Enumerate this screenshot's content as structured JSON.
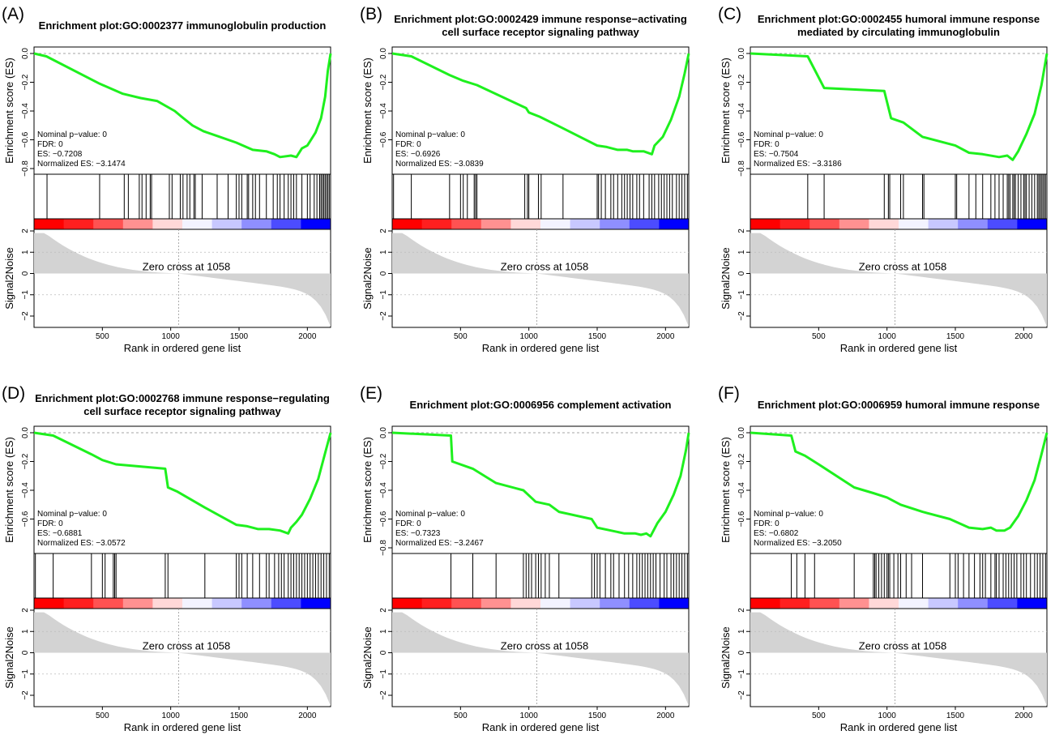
{
  "figure": {
    "y_label_es": "Enrichment score (ES)",
    "y_label_metric": "Signal2Noise",
    "x_label": "Rank in ordered gene list",
    "zero_cross_label": "Zero cross at 1058",
    "stat_labels": {
      "p": "Nominal p−value: 0",
      "fdr": "FDR: 0"
    },
    "colors": {
      "es_curve": "#1ef01e",
      "hits": "#000000",
      "metric_fill": "#d3d3d3",
      "positive": "#ff0000",
      "negative": "#0000ff"
    }
  },
  "chart_data": [
    {
      "panel": "(A)",
      "type": "line",
      "title_lines": [
        "Enrichment plot:GO:0002377 immunoglobulin production"
      ],
      "es_text": "ES: −0.7208",
      "nes_text": "Normalized ES: −3.1474",
      "nominal_p": 0,
      "fdr": 0,
      "es": -0.7208,
      "nes": -3.1474,
      "n_genes": 2170,
      "zero_cross": 1058,
      "es_ylim": [
        -0.8,
        0.0
      ],
      "es_yticks": [
        "−0.8",
        "−0.6",
        "−0.4",
        "−0.2",
        "0.0"
      ],
      "metric_ylim": [
        -2,
        2
      ],
      "metric_yticks": [
        "−2",
        "−1",
        "0",
        "1",
        "2"
      ],
      "xticks": [
        500,
        1000,
        1500,
        2000
      ],
      "es_curve": {
        "x": [
          0,
          90,
          480,
          650,
          780,
          900,
          1030,
          1080,
          1160,
          1240,
          1330,
          1480,
          1600,
          1700,
          1760,
          1800,
          1880,
          1920,
          1960,
          2000,
          2060,
          2100,
          2130,
          2150,
          2170
        ],
        "y": [
          0.0,
          -0.02,
          -0.21,
          -0.28,
          -0.31,
          -0.33,
          -0.4,
          -0.44,
          -0.5,
          -0.54,
          -0.57,
          -0.62,
          -0.67,
          -0.68,
          -0.7,
          -0.72,
          -0.71,
          -0.72,
          -0.66,
          -0.64,
          -0.55,
          -0.45,
          -0.3,
          -0.12,
          0.0
        ]
      },
      "hits": [
        95,
        480,
        660,
        690,
        770,
        790,
        820,
        850,
        860,
        990,
        1010,
        1070,
        1090,
        1120,
        1140,
        1170,
        1180,
        1230,
        1340,
        1420,
        1480,
        1500,
        1520,
        1560,
        1570,
        1600,
        1620,
        1650,
        1700,
        1750,
        1780,
        1800,
        1830,
        1860,
        1880,
        1900,
        1920,
        1960,
        2000,
        2020,
        2050,
        2070,
        2090,
        2100,
        2110,
        2120,
        2130,
        2140,
        2150,
        2160
      ]
    },
    {
      "panel": "(B)",
      "type": "line",
      "title_lines": [
        "Enrichment plot:GO:0002429 immune response−activating",
        "cell surface receptor signaling pathway"
      ],
      "es_text": "ES: −0.6926",
      "nes_text": "Normalized ES: −3.0839",
      "nominal_p": 0,
      "fdr": 0,
      "es": -0.6926,
      "nes": -3.0839,
      "n_genes": 2170,
      "zero_cross": 1058,
      "es_ylim": [
        -0.8,
        0.0
      ],
      "es_yticks": [
        "−0.6",
        "−0.4",
        "−0.2",
        "0.0"
      ],
      "metric_ylim": [
        -2,
        2
      ],
      "metric_yticks": [
        "−2",
        "−1",
        "0",
        "1",
        "2"
      ],
      "xticks": [
        500,
        1000,
        1500,
        2000
      ],
      "es_curve": {
        "x": [
          0,
          140,
          420,
          520,
          620,
          980,
          1000,
          1080,
          1250,
          1500,
          1570,
          1650,
          1720,
          1760,
          1840,
          1900,
          1920,
          1980,
          2040,
          2100,
          2140,
          2170
        ],
        "y": [
          0.0,
          -0.02,
          -0.15,
          -0.19,
          -0.22,
          -0.38,
          -0.41,
          -0.44,
          -0.52,
          -0.64,
          -0.65,
          -0.67,
          -0.67,
          -0.68,
          -0.68,
          -0.7,
          -0.64,
          -0.58,
          -0.46,
          -0.3,
          -0.14,
          0.0
        ]
      },
      "hits": [
        10,
        140,
        420,
        500,
        520,
        550,
        600,
        610,
        620,
        970,
        990,
        1000,
        1070,
        1090,
        1250,
        1500,
        1510,
        1530,
        1560,
        1600,
        1620,
        1650,
        1680,
        1700,
        1720,
        1740,
        1760,
        1790,
        1810,
        1840,
        1880,
        1900,
        1920,
        1950,
        1970,
        1990,
        2010,
        2030,
        2050,
        2080,
        2100,
        2120,
        2140,
        2160
      ]
    },
    {
      "panel": "(C)",
      "type": "line",
      "title_lines": [
        "Enrichment plot:GO:0002455 humoral immune response",
        "mediated by circulating immunoglobulin"
      ],
      "es_text": "ES: −0.7504",
      "nes_text": "Normalized ES: −3.3186",
      "nominal_p": 0,
      "fdr": 0,
      "es": -0.7504,
      "nes": -3.3186,
      "n_genes": 2170,
      "zero_cross": 1058,
      "es_ylim": [
        -0.8,
        0.0
      ],
      "es_yticks": [
        "−0.8",
        "−0.6",
        "−0.4",
        "−0.2",
        "0.0"
      ],
      "metric_ylim": [
        -2,
        2
      ],
      "metric_yticks": [
        "−2",
        "−1",
        "0",
        "1",
        "2"
      ],
      "xticks": [
        500,
        1000,
        1500,
        2000
      ],
      "es_curve": {
        "x": [
          0,
          420,
          540,
          980,
          1030,
          1120,
          1260,
          1500,
          1600,
          1700,
          1820,
          1880,
          1920,
          1960,
          2020,
          2080,
          2130,
          2170
        ],
        "y": [
          0.0,
          -0.02,
          -0.24,
          -0.26,
          -0.45,
          -0.48,
          -0.58,
          -0.64,
          -0.69,
          -0.7,
          -0.72,
          -0.71,
          -0.74,
          -0.68,
          -0.56,
          -0.42,
          -0.22,
          0.0
        ]
      },
      "hits": [
        420,
        540,
        980,
        1010,
        1020,
        1100,
        1120,
        1260,
        1270,
        1500,
        1510,
        1600,
        1650,
        1700,
        1760,
        1790,
        1820,
        1850,
        1880,
        1890,
        1900,
        1920,
        1930,
        1940,
        1960,
        1980,
        2000,
        2010,
        2020,
        2040,
        2060,
        2080,
        2100,
        2110,
        2120,
        2130,
        2140,
        2150,
        2160
      ]
    },
    {
      "panel": "(D)",
      "type": "line",
      "title_lines": [
        "Enrichment plot:GO:0002768 immune response−regulating",
        "cell surface receptor signaling pathway"
      ],
      "es_text": "ES: −0.6881",
      "nes_text": "Normalized ES: −3.0572",
      "nominal_p": 0,
      "fdr": 0,
      "es": -0.6881,
      "nes": -3.0572,
      "n_genes": 2170,
      "zero_cross": 1058,
      "es_ylim": [
        -0.8,
        0.0
      ],
      "es_yticks": [
        "−0.6",
        "−0.4",
        "−0.2",
        "0.0"
      ],
      "metric_ylim": [
        -2,
        2
      ],
      "metric_yticks": [
        "−2",
        "−1",
        "0",
        "1",
        "2"
      ],
      "xticks": [
        500,
        1000,
        1500,
        2000
      ],
      "es_curve": {
        "x": [
          0,
          140,
          420,
          500,
          600,
          960,
          980,
          1050,
          1250,
          1480,
          1560,
          1640,
          1720,
          1800,
          1860,
          1880,
          1920,
          1960,
          2020,
          2080,
          2130,
          2170
        ],
        "y": [
          0.0,
          -0.02,
          -0.15,
          -0.19,
          -0.22,
          -0.25,
          -0.38,
          -0.41,
          -0.52,
          -0.64,
          -0.65,
          -0.67,
          -0.67,
          -0.68,
          -0.7,
          -0.66,
          -0.62,
          -0.57,
          -0.46,
          -0.32,
          -0.14,
          0.0
        ]
      },
      "hits": [
        10,
        140,
        420,
        500,
        520,
        580,
        590,
        600,
        960,
        980,
        1250,
        1480,
        1500,
        1520,
        1560,
        1600,
        1650,
        1700,
        1720,
        1760,
        1790,
        1810,
        1830,
        1860,
        1880,
        1900,
        1920,
        1940,
        1960,
        1980,
        2000,
        2020,
        2040,
        2060,
        2080,
        2100,
        2120,
        2140,
        2160
      ]
    },
    {
      "panel": "(E)",
      "type": "line",
      "title_lines": [
        "Enrichment plot:GO:0006956 complement activation"
      ],
      "es_text": "ES: −0.7323",
      "nes_text": "Normalized ES: −3.2467",
      "nominal_p": 0,
      "fdr": 0,
      "es": -0.7323,
      "nes": -3.2467,
      "n_genes": 2170,
      "zero_cross": 1058,
      "es_ylim": [
        -0.8,
        0.0
      ],
      "es_yticks": [
        "−0.8",
        "−0.6",
        "−0.4",
        "−0.2",
        "0.0"
      ],
      "metric_ylim": [
        -2,
        2
      ],
      "metric_yticks": [
        "−2",
        "−1",
        "0",
        "1",
        "2"
      ],
      "xticks": [
        500,
        1000,
        1500,
        2000
      ],
      "es_curve": {
        "x": [
          0,
          430,
          440,
          590,
          760,
          960,
          1050,
          1150,
          1220,
          1460,
          1500,
          1600,
          1700,
          1780,
          1820,
          1860,
          1890,
          1940,
          2000,
          2060,
          2110,
          2150,
          2170
        ],
        "y": [
          0.0,
          -0.02,
          -0.2,
          -0.25,
          -0.35,
          -0.4,
          -0.48,
          -0.5,
          -0.55,
          -0.6,
          -0.66,
          -0.68,
          -0.7,
          -0.7,
          -0.71,
          -0.7,
          -0.72,
          -0.63,
          -0.55,
          -0.43,
          -0.3,
          -0.12,
          0.0
        ]
      },
      "hits": [
        430,
        590,
        760,
        960,
        980,
        1000,
        1020,
        1050,
        1070,
        1090,
        1120,
        1150,
        1220,
        1460,
        1480,
        1500,
        1520,
        1560,
        1600,
        1620,
        1660,
        1700,
        1730,
        1760,
        1790,
        1810,
        1830,
        1850,
        1870,
        1890,
        1910,
        1930,
        1960,
        1990,
        2010,
        2040,
        2060,
        2080,
        2100,
        2120,
        2140,
        2160
      ]
    },
    {
      "panel": "(F)",
      "type": "line",
      "title_lines": [
        "Enrichment plot:GO:0006959 humoral immune response"
      ],
      "es_text": "ES: −0.6802",
      "nes_text": "Normalized ES: −3.2050",
      "nominal_p": 0,
      "fdr": 0,
      "es": -0.6802,
      "nes": -3.205,
      "n_genes": 2170,
      "zero_cross": 1058,
      "es_ylim": [
        -0.8,
        0.0
      ],
      "es_yticks": [
        "−0.6",
        "−0.4",
        "−0.2",
        "0.0"
      ],
      "metric_ylim": [
        -2,
        2
      ],
      "metric_yticks": [
        "−2",
        "−1",
        "0",
        "1",
        "2"
      ],
      "xticks": [
        500,
        1000,
        1500,
        2000
      ],
      "es_curve": {
        "x": [
          0,
          300,
          330,
          400,
          500,
          760,
          900,
          1000,
          1100,
          1260,
          1460,
          1600,
          1700,
          1760,
          1800,
          1860,
          1900,
          1960,
          2020,
          2080,
          2130,
          2170
        ],
        "y": [
          0.0,
          -0.02,
          -0.13,
          -0.16,
          -0.22,
          -0.38,
          -0.42,
          -0.45,
          -0.5,
          -0.55,
          -0.6,
          -0.66,
          -0.67,
          -0.66,
          -0.68,
          -0.68,
          -0.66,
          -0.58,
          -0.47,
          -0.33,
          -0.15,
          0.0
        ]
      },
      "hits": [
        300,
        340,
        400,
        470,
        760,
        900,
        910,
        920,
        940,
        960,
        980,
        1000,
        1010,
        1020,
        1050,
        1080,
        1100,
        1140,
        1180,
        1260,
        1460,
        1500,
        1520,
        1560,
        1600,
        1640,
        1680,
        1700,
        1720,
        1760,
        1790,
        1800,
        1820,
        1850,
        1870,
        1890,
        1910,
        1930,
        1950,
        1980,
        2000,
        2020,
        2050,
        2080,
        2100,
        2120,
        2140,
        2160
      ]
    }
  ]
}
